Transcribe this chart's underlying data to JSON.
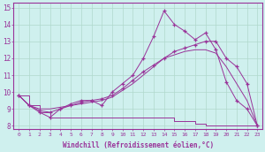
{
  "xlabel": "Windchill (Refroidissement éolien,°C)",
  "bg_color": "#cff0ee",
  "line_color": "#993399",
  "grid_color": "#b0d8cc",
  "xlim": [
    -0.5,
    23.5
  ],
  "ylim": [
    7.8,
    15.3
  ],
  "xticks": [
    0,
    1,
    2,
    3,
    4,
    5,
    6,
    7,
    8,
    9,
    10,
    11,
    12,
    13,
    14,
    15,
    16,
    17,
    18,
    19,
    20,
    21,
    22,
    23
  ],
  "yticks": [
    8,
    9,
    10,
    11,
    12,
    13,
    14,
    15
  ],
  "line1_step": {
    "x": [
      0,
      1,
      2,
      3,
      4,
      5,
      6,
      7,
      8,
      9,
      10,
      11,
      12,
      13,
      14,
      15,
      16,
      17,
      18,
      19,
      20,
      21,
      22,
      23
    ],
    "y": [
      9.8,
      9.2,
      8.8,
      8.5,
      8.5,
      8.5,
      8.5,
      8.5,
      8.5,
      8.5,
      8.5,
      8.5,
      8.5,
      8.5,
      8.5,
      8.3,
      8.3,
      8.1,
      8.0,
      8.0,
      8.0,
      8.0,
      8.0,
      8.0
    ]
  },
  "line2_smooth": {
    "x": [
      0,
      1,
      2,
      3,
      4,
      5,
      6,
      7,
      8,
      9,
      10,
      11,
      12,
      13,
      14,
      15,
      16,
      17,
      18,
      19,
      20,
      21,
      22,
      23
    ],
    "y": [
      9.8,
      9.2,
      9.0,
      9.0,
      9.1,
      9.2,
      9.3,
      9.4,
      9.5,
      9.7,
      10.1,
      10.5,
      11.0,
      11.5,
      12.0,
      12.2,
      12.4,
      12.5,
      12.5,
      12.3,
      11.5,
      10.5,
      9.5,
      8.0
    ]
  },
  "line3_marked_jagged": {
    "x": [
      0,
      1,
      2,
      3,
      4,
      5,
      6,
      7,
      8,
      9,
      10,
      11,
      12,
      13,
      14,
      15,
      16,
      17,
      18,
      19,
      20,
      21,
      22,
      23
    ],
    "y": [
      9.8,
      9.2,
      8.8,
      8.5,
      9.0,
      9.3,
      9.5,
      9.5,
      9.2,
      10.0,
      10.5,
      11.0,
      12.0,
      13.3,
      14.8,
      14.0,
      13.6,
      13.1,
      13.5,
      12.5,
      10.6,
      9.5,
      9.0,
      8.0
    ]
  },
  "line4_marked_smooth": {
    "x": [
      0,
      1,
      2,
      3,
      4,
      5,
      6,
      7,
      8,
      9,
      10,
      11,
      12,
      13,
      14,
      15,
      16,
      17,
      18,
      19,
      20,
      21,
      22,
      23
    ],
    "y": [
      9.8,
      9.2,
      8.9,
      8.8,
      9.0,
      9.2,
      9.4,
      9.5,
      9.6,
      9.8,
      10.2,
      10.7,
      11.2,
      11.6,
      12.0,
      12.4,
      12.6,
      12.8,
      13.0,
      13.0,
      12.0,
      11.5,
      10.5,
      8.0
    ]
  }
}
